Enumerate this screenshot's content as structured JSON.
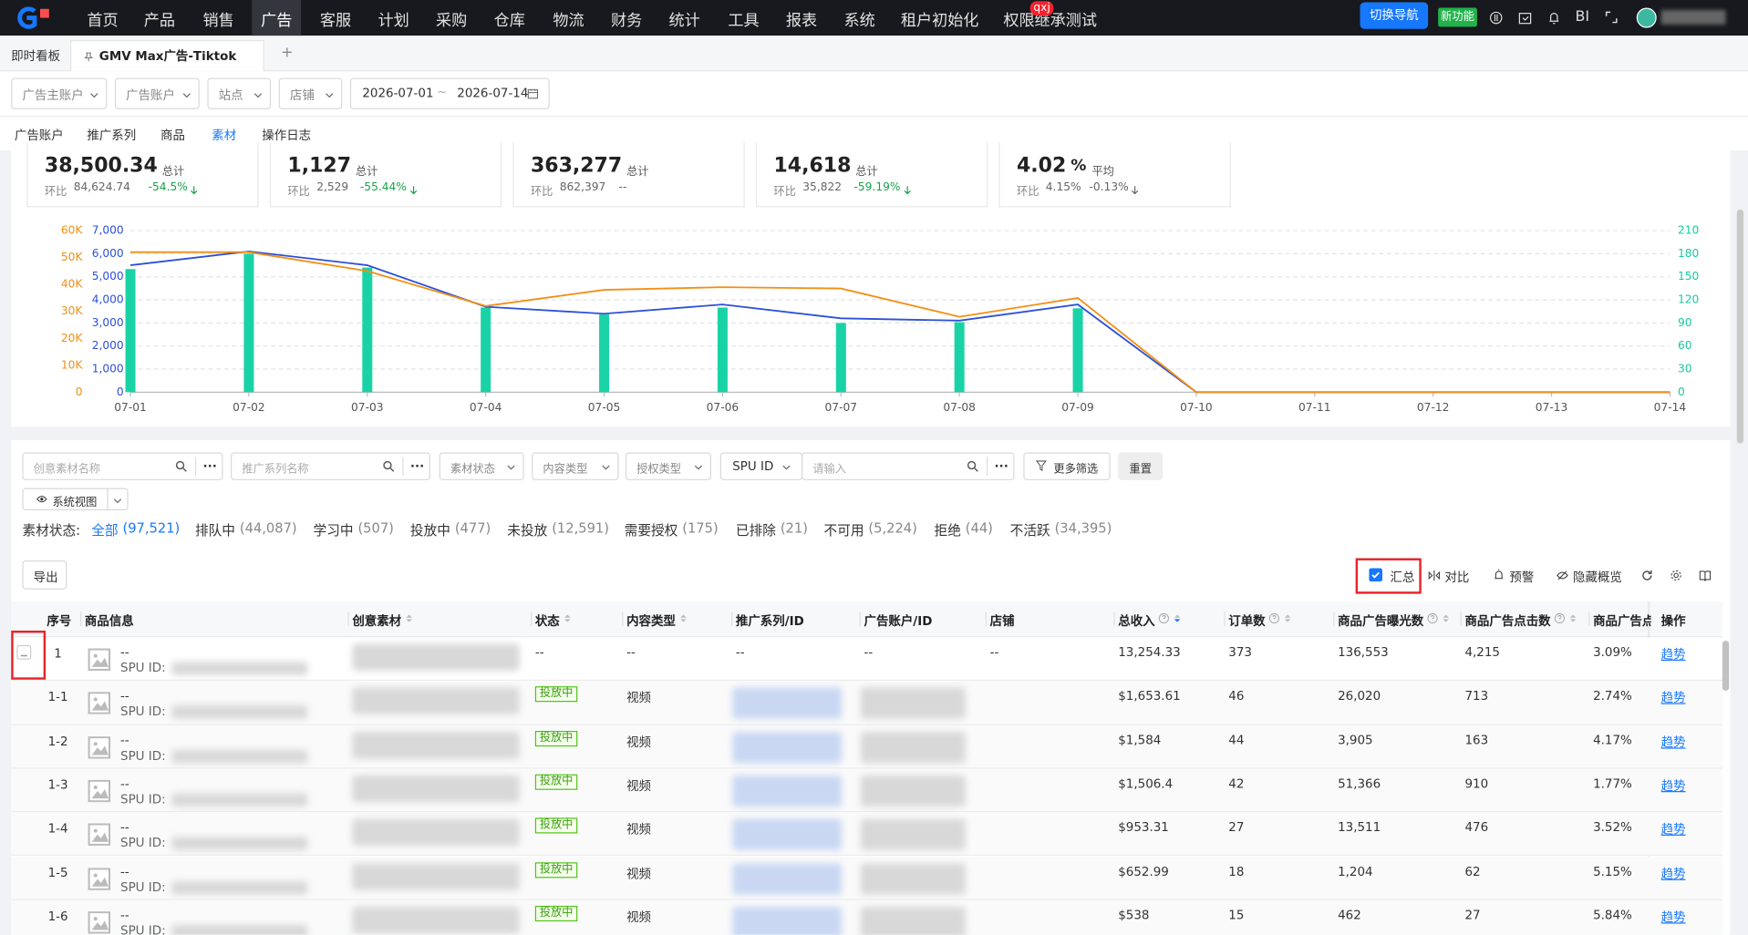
{
  "nav": {
    "items": [
      "首页",
      "产品",
      "销售",
      "广告",
      "客服",
      "计划",
      "采购",
      "仓库",
      "物流",
      "财务",
      "统计",
      "工具",
      "报表",
      "系统",
      "租户初始化",
      "权限继承测试"
    ],
    "active": 3,
    "badge": "qxj",
    "switch_nav": "切换导航",
    "new_feature": "新功能",
    "bi": "BI"
  },
  "tabs": {
    "home": "即时看板",
    "active": "GMV Max广告-Tiktok",
    "add": "+"
  },
  "filters": {
    "selects": [
      "广告主账户",
      "广告账户",
      "站点",
      "店铺"
    ],
    "date_start": "2026-07-01",
    "date_sep": "~",
    "date_end": "2026-07-14"
  },
  "subtabs": {
    "items": [
      "广告账户",
      "推广系列",
      "商品",
      "素材",
      "操作日志"
    ],
    "active": 3
  },
  "metrics": [
    {
      "value": "38,500.34",
      "agg": "总计",
      "compare_label": "环比",
      "previous": "84,624.74",
      "change": "-54.5%",
      "trend": "down"
    },
    {
      "value": "1,127",
      "agg": "总计",
      "compare_label": "环比",
      "previous": "2,529",
      "change": "-55.44%",
      "trend": "down"
    },
    {
      "value": "363,277",
      "agg": "总计",
      "compare_label": "环比",
      "previous": "862,397",
      "change": "--"
    },
    {
      "value": "14,618",
      "agg": "总计",
      "compare_label": "环比",
      "previous": "35,822",
      "change": "-59.19%",
      "trend": "down"
    },
    {
      "value": "4.02",
      "suffix": "%",
      "agg": "平均",
      "compare_label": "环比",
      "previous": "4.15%",
      "change": "-0.13%",
      "trend": "flat-down"
    }
  ],
  "chart_data": {
    "type": "combo",
    "categories": [
      "07-01",
      "07-02",
      "07-03",
      "07-04",
      "07-05",
      "07-06",
      "07-07",
      "07-08",
      "07-09",
      "07-10",
      "07-11",
      "07-12",
      "07-13",
      "07-14"
    ],
    "series": [
      {
        "type": "bar",
        "color": "#19d3a6",
        "axis": "y2",
        "values": [
          160,
          180,
          162,
          110,
          101,
          110,
          90,
          91,
          109,
          0,
          0,
          0,
          0,
          0
        ]
      },
      {
        "type": "line",
        "color": "#2d50d8",
        "values": [
          5500,
          6100,
          5500,
          3700,
          3400,
          3800,
          3200,
          3100,
          3800,
          0,
          0,
          0,
          0,
          0
        ]
      },
      {
        "type": "line",
        "color": "#f28f16",
        "axis": "y3",
        "values": [
          52000,
          52000,
          45000,
          32000,
          38000,
          39000,
          38500,
          28000,
          35000,
          0,
          0,
          0,
          0,
          0
        ]
      }
    ],
    "ylim": [
      0,
      7000
    ],
    "yticks": [
      0,
      {
        "value": 1000,
        "label": "1,000"
      },
      {
        "value": 2000,
        "label": "2,000"
      },
      {
        "value": 3000,
        "label": "3,000"
      },
      {
        "value": 4000,
        "label": "4,000"
      },
      {
        "value": 5000,
        "label": "5,000"
      },
      {
        "value": 6000,
        "label": "6,000"
      },
      {
        "value": 7000,
        "label": "7,000"
      }
    ],
    "y2lim": [
      0,
      210
    ],
    "y2ticks": [
      0,
      30,
      60,
      90,
      120,
      150,
      180,
      210
    ],
    "y3lim": [
      0,
      60000
    ],
    "y3ticks": [
      0,
      {
        "value": 10000,
        "label": "10K"
      },
      {
        "value": 20000,
        "label": "20K"
      },
      {
        "value": 30000,
        "label": "30K"
      },
      {
        "value": 40000,
        "label": "40K"
      },
      {
        "value": 50000,
        "label": "50K"
      },
      {
        "value": 60000,
        "label": "60K"
      }
    ],
    "grid": true
  },
  "search": {
    "creative": "创意素材名称",
    "campaign": "推广系列名称",
    "more": "...",
    "selects": [
      "素材状态",
      "内容类型",
      "授权类型"
    ],
    "spu": "SPU ID",
    "input": "请输入",
    "more_filters": "更多筛选",
    "reset": "重置",
    "view": "系统视图"
  },
  "status": {
    "label": "素材状态:",
    "active": 0,
    "items": [
      {
        "name": "全部",
        "count": "(97,521)"
      },
      {
        "name": "排队中",
        "count": "(44,087)"
      },
      {
        "name": "学习中",
        "count": "(507)"
      },
      {
        "name": "投放中",
        "count": "(477)"
      },
      {
        "name": "未投放",
        "count": "(12,591)"
      },
      {
        "name": "需要授权",
        "count": "(175)"
      },
      {
        "name": "已排除",
        "count": "(21)"
      },
      {
        "name": "不可用",
        "count": "(5,224)"
      },
      {
        "name": "拒绝",
        "count": "(44)"
      },
      {
        "name": "不活跃",
        "count": "(34,395)"
      }
    ]
  },
  "toolbar": {
    "export": "导出",
    "summary": "汇总",
    "compare": "对比",
    "alert": "预警",
    "hide": "隐藏概览"
  },
  "table": {
    "columns": [
      "序号",
      "商品信息",
      "创意素材",
      "状态",
      "内容类型",
      "推广系列/ID",
      "广告账户/ID",
      "店铺",
      "总收入",
      "订单数",
      "商品广告曝光数",
      "商品广告点击数",
      "商品广告点击",
      "操作"
    ],
    "rows": [
      {
        "index": "1",
        "name": "--",
        "spu": "SPU ID:",
        "status": "--",
        "content": "--",
        "campaign": "--",
        "account": "--",
        "shop": "--",
        "revenue": "13,254.33",
        "orders": "373",
        "impressions": "136,553",
        "clicks": "4,215",
        "ctr": "3.09%",
        "action": "趋势",
        "children": [
          {
            "index": "1-1",
            "name": "--",
            "spu": "SPU ID:",
            "status": "投放中",
            "content": "视频",
            "revenue": "$1,653.61",
            "orders": "46",
            "impressions": "26,020",
            "clicks": "713",
            "ctr": "2.74%",
            "action": "趋势"
          },
          {
            "index": "1-2",
            "name": "--",
            "spu": "SPU ID:",
            "status": "投放中",
            "content": "视频",
            "revenue": "$1,584",
            "orders": "44",
            "impressions": "3,905",
            "clicks": "163",
            "ctr": "4.17%",
            "action": "趋势"
          },
          {
            "index": "1-3",
            "name": "--",
            "spu": "SPU ID:",
            "status": "投放中",
            "content": "视频",
            "revenue": "$1,506.4",
            "orders": "42",
            "impressions": "51,366",
            "clicks": "910",
            "ctr": "1.77%",
            "action": "趋势"
          },
          {
            "index": "1-4",
            "name": "--",
            "spu": "SPU ID:",
            "status": "投放中",
            "content": "视频",
            "revenue": "$953.31",
            "orders": "27",
            "impressions": "13,511",
            "clicks": "476",
            "ctr": "3.52%",
            "action": "趋势"
          },
          {
            "index": "1-5",
            "name": "--",
            "spu": "SPU ID:",
            "status": "投放中",
            "content": "视频",
            "revenue": "$652.99",
            "orders": "18",
            "impressions": "1,204",
            "clicks": "62",
            "ctr": "5.15%",
            "action": "趋势"
          },
          {
            "index": "1-6",
            "name": "--",
            "spu": "SPU ID:",
            "status": "投放中",
            "content": "视频",
            "revenue": "$538",
            "orders": "15",
            "impressions": "462",
            "clicks": "27",
            "ctr": "5.84%",
            "action": "趋势"
          }
        ]
      }
    ]
  }
}
